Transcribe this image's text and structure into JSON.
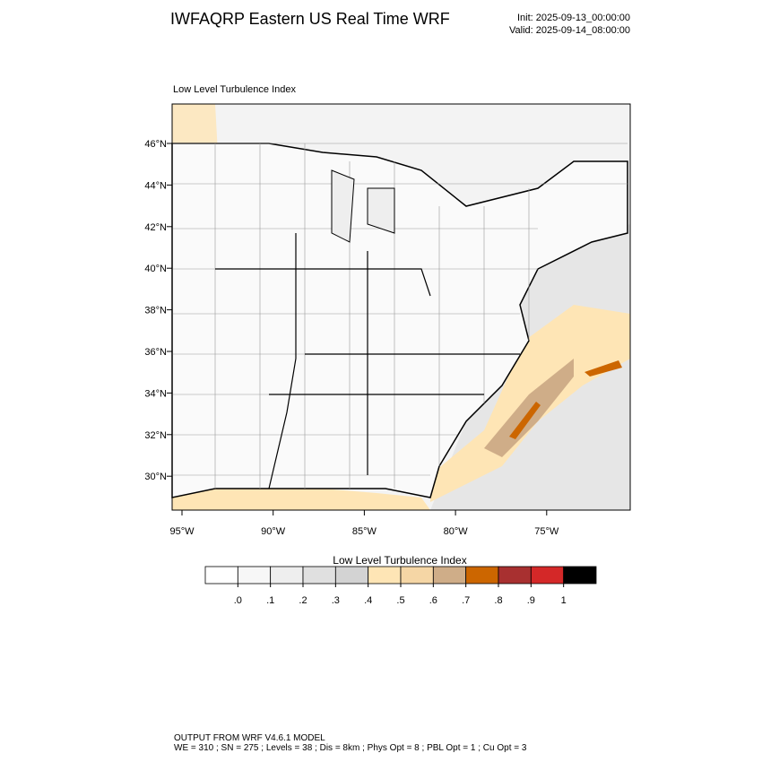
{
  "header": {
    "title": "IWFAQRP Eastern US Real Time WRF",
    "init": "Init: 2025-09-13_00:00:00",
    "valid": "Valid: 2025-09-14_08:00:00"
  },
  "map": {
    "title": "Low Level Turbulence Index",
    "lat_labels": [
      "46°N",
      "44°N",
      "42°N",
      "40°N",
      "38°N",
      "36°N",
      "34°N",
      "32°N",
      "30°N"
    ],
    "lon_labels": [
      "95°W",
      "90°W",
      "85°W",
      "80°W",
      "75°W"
    ]
  },
  "colorbar": {
    "title": "Low Level Turbulence Index",
    "colors": [
      "#ffffff",
      "#f7f7f7",
      "#eeeeee",
      "#e0e0e0",
      "#d3d3d3",
      "#fee5b5",
      "#f5d6a5",
      "#cfad88",
      "#cc6600",
      "#a83030",
      "#d42828",
      "#000000"
    ],
    "ticks": [
      {
        "value": 0,
        "label": ".0"
      },
      {
        "value": 0.1,
        "label": ".1"
      },
      {
        "value": 0.2,
        "label": ".2"
      },
      {
        "value": 0.3,
        "label": ".3"
      },
      {
        "value": 0.4,
        "label": ".4"
      },
      {
        "value": 0.5,
        "label": ".5"
      },
      {
        "value": 0.6,
        "label": ".6"
      },
      {
        "value": 0.7,
        "label": ".7"
      },
      {
        "value": 0.8,
        "label": ".8"
      },
      {
        "value": 0.9,
        "label": ".9"
      },
      1
    ]
  },
  "footer": {
    "model": "OUTPUT FROM WRF V4.6.1 MODEL",
    "settings": "WE = 310 ; SN = 275 ; Levels = 38 ; Dis = 8km ; Phys Opt = 8 ; PBL Opt = 1 ; Cu Opt = 3"
  }
}
